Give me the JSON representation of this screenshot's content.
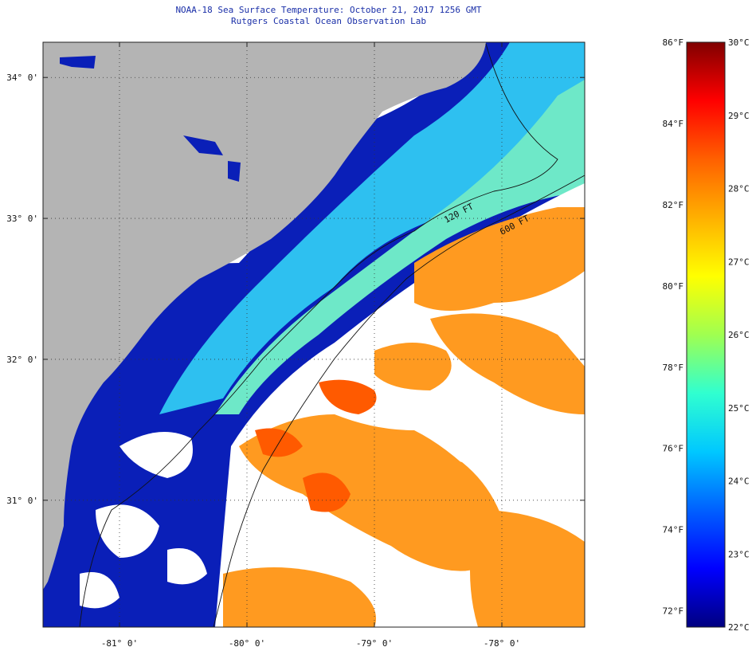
{
  "header": {
    "title": "NOAA-18 Sea Surface Temperature:  October 21, 2017 1256 GMT",
    "subtitle": "Rutgers Coastal Ocean Observation Lab"
  },
  "map": {
    "lon_range": [
      -81.6,
      -77.35
    ],
    "lat_range": [
      30.1,
      34.25
    ],
    "lat_ticks": [
      {
        "value": 34,
        "label": "34° 0'"
      },
      {
        "value": 33,
        "label": "33° 0'"
      },
      {
        "value": 32,
        "label": "32° 0'"
      },
      {
        "value": 31,
        "label": "31° 0'"
      }
    ],
    "lon_ticks": [
      {
        "value": -81,
        "label": "-81° 0'"
      },
      {
        "value": -80,
        "label": "-80° 0'"
      },
      {
        "value": -79,
        "label": "-79° 0'"
      },
      {
        "value": -78,
        "label": "-78° 0'"
      }
    ],
    "contours": [
      {
        "label": "120 FT",
        "depth_ft": 120
      },
      {
        "label": "600 FT",
        "depth_ft": 600
      }
    ],
    "colors": {
      "land": "#b4b4b4",
      "cloud": "#ffffff",
      "coastal_cold": "#0a1a9e",
      "shelf_warm": "#ff9a1a",
      "gulf_stream_hot": "#ff5a00"
    }
  },
  "colorbar": {
    "celsius_range": [
      22,
      30
    ],
    "fahrenheit_range": [
      72,
      86
    ],
    "fahrenheit_labels": [
      "86°F",
      "84°F",
      "82°F",
      "80°F",
      "78°F",
      "76°F",
      "74°F",
      "72°F"
    ],
    "celsius_labels": [
      "30°C",
      "29°C",
      "28°C",
      "27°C",
      "26°C",
      "25°C",
      "24°C",
      "23°C",
      "22°C"
    ],
    "stops": [
      "#000080",
      "#0000ff",
      "#0060ff",
      "#00c8ff",
      "#30ffd0",
      "#a0ff50",
      "#ffff00",
      "#ffb000",
      "#ff6000",
      "#ff0000",
      "#800000"
    ]
  }
}
